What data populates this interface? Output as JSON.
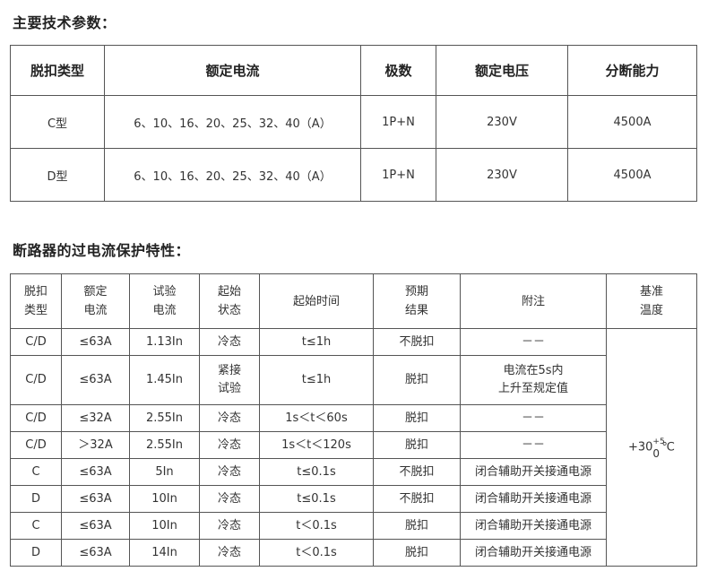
{
  "section1": {
    "heading": "主要技术参数：",
    "columns": [
      "脱扣类型",
      "额定电流",
      "极数",
      "额定电压",
      "分断能力"
    ],
    "rows": [
      [
        "C型",
        "6、10、16、20、25、32、40（A）",
        "1P+N",
        "230V",
        "4500A"
      ],
      [
        "D型",
        "6、10、16、20、25、32、40（A）",
        "1P+N",
        "230V",
        "4500A"
      ]
    ]
  },
  "section2": {
    "heading": "断路器的过电流保护特性：",
    "columns": [
      [
        "脱扣",
        "类型"
      ],
      [
        "额定",
        "电流"
      ],
      [
        "试验",
        "电流"
      ],
      [
        "起始",
        "状态"
      ],
      [
        "起始时间"
      ],
      [
        "预期",
        "结果"
      ],
      [
        "附注"
      ],
      [
        "基准",
        "温度"
      ]
    ],
    "rows": [
      {
        "type": "C/D",
        "rated": "≤63A",
        "test": "1.13In",
        "state": [
          "冷态"
        ],
        "time": "t≤1h",
        "result": "不脱扣",
        "note": [
          "－－"
        ]
      },
      {
        "type": "C/D",
        "rated": "≤63A",
        "test": "1.45In",
        "state": [
          "紧接",
          "试验"
        ],
        "time": "t≤1h",
        "result": "脱扣",
        "note": [
          "电流在5s内",
          "上升至规定值"
        ]
      },
      {
        "type": "C/D",
        "rated": "≤32A",
        "test": "2.55In",
        "state": [
          "冷态"
        ],
        "time": "1s＜t＜60s",
        "result": "脱扣",
        "note": [
          "－－"
        ]
      },
      {
        "type": "C/D",
        "rated": "＞32A",
        "test": "2.55In",
        "state": [
          "冷态"
        ],
        "time": "1s＜t＜120s",
        "result": "脱扣",
        "note": [
          "－－"
        ]
      },
      {
        "type": "C",
        "rated": "≤63A",
        "test": "5In",
        "state": [
          "冷态"
        ],
        "time": "t≤0.1s",
        "result": "不脱扣",
        "note": [
          "闭合辅助开关接通电源"
        ]
      },
      {
        "type": "D",
        "rated": "≤63A",
        "test": "10In",
        "state": [
          "冷态"
        ],
        "time": "t≤0.1s",
        "result": "不脱扣",
        "note": [
          "闭合辅助开关接通电源"
        ]
      },
      {
        "type": "C",
        "rated": "≤63A",
        "test": "10In",
        "state": [
          "冷态"
        ],
        "time": "t＜0.1s",
        "result": "脱扣",
        "note": [
          "闭合辅助开关接通电源"
        ]
      },
      {
        "type": "D",
        "rated": "≤63A",
        "test": "14In",
        "state": [
          "冷态"
        ],
        "time": "t＜0.1s",
        "result": "脱扣",
        "note": [
          "闭合辅助开关接通电源"
        ]
      }
    ],
    "reference_temp": {
      "base": "+30",
      "sup": "+5",
      "sub": "0",
      "unit": "℃"
    }
  }
}
